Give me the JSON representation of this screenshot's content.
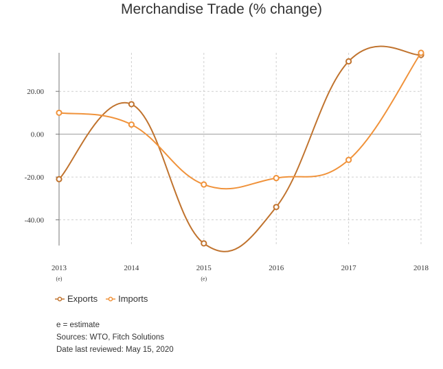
{
  "chart_data": {
    "type": "line",
    "title": "Merchandise Trade (% change)",
    "categories": [
      "2013",
      "2014",
      "2015",
      "2016",
      "2017",
      "2018"
    ],
    "category_sublabels": [
      "(e)",
      "",
      "(e)",
      "",
      "",
      ""
    ],
    "series": [
      {
        "name": "Exports",
        "color": "#c0732e",
        "values": [
          -21,
          14,
          -51,
          -34,
          34,
          37
        ]
      },
      {
        "name": "Imports",
        "color": "#f0923a",
        "values": [
          10,
          4.5,
          -23.5,
          -20.5,
          -12,
          38
        ]
      }
    ],
    "yticks": [
      "20.00",
      "0.00",
      "-20.00",
      "-40.00"
    ],
    "ytick_values": [
      20,
      0,
      -20,
      -40
    ],
    "ylim": [
      -52,
      38
    ],
    "grid": true,
    "legend_position": "bottom-left"
  },
  "notes": {
    "estimate": "e = estimate",
    "sources": "Sources: WTO, Fitch Solutions",
    "reviewed": "Date last reviewed: May 15, 2020"
  }
}
